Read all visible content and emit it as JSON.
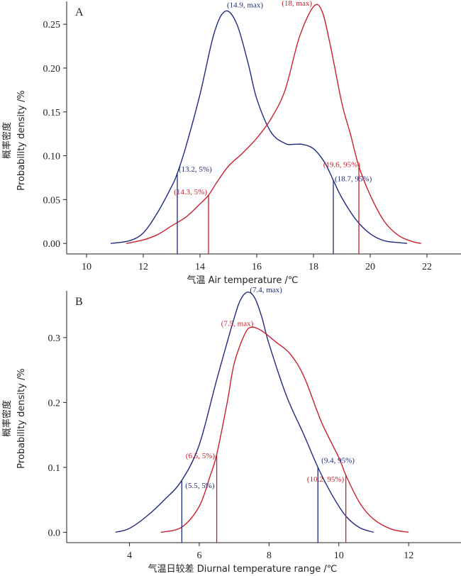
{
  "colors": {
    "blue": "#1f2a80",
    "red": "#c8202e"
  },
  "chart_data": [
    {
      "type": "line",
      "panel_label": "A",
      "xlabel": "气温 Air temperature /℃",
      "ylabel_cn": "概率密度",
      "ylabel_en": "Probability density /%",
      "xlim": [
        9.3,
        23.2
      ],
      "ylim": [
        -0.012,
        0.276
      ],
      "xticks": [
        10,
        12,
        14,
        16,
        18,
        20,
        22
      ],
      "xtick_labels": [
        "10",
        "12",
        "14",
        "16",
        "18",
        "20",
        "22"
      ],
      "yticks": [
        0,
        0.05,
        0.1,
        0.15,
        0.2,
        0.25
      ],
      "ytick_labels": [
        "0.00",
        "0.05",
        "0.10",
        "0.15",
        "0.20",
        "0.25"
      ],
      "series": [
        {
          "color": "blue",
          "x": [
            10.85,
            11.5,
            12.0,
            12.5,
            13.0,
            13.2,
            13.5,
            14.0,
            14.5,
            14.9,
            15.3,
            15.7,
            16.0,
            16.5,
            17.0,
            17.3,
            17.6,
            18.0,
            18.4,
            18.7,
            19.0,
            19.5,
            20.0,
            20.5,
            21.0,
            21.3
          ],
          "y": [
            0.0,
            0.003,
            0.012,
            0.035,
            0.065,
            0.08,
            0.11,
            0.17,
            0.24,
            0.265,
            0.25,
            0.205,
            0.165,
            0.127,
            0.114,
            0.113,
            0.113,
            0.108,
            0.092,
            0.072,
            0.052,
            0.027,
            0.011,
            0.003,
            0.001,
            0.0
          ]
        },
        {
          "color": "red",
          "x": [
            11.4,
            12.0,
            12.5,
            13.0,
            13.5,
            14.0,
            14.3,
            14.6,
            15.0,
            15.5,
            16.0,
            16.5,
            17.0,
            17.5,
            18.0,
            18.3,
            18.6,
            19.0,
            19.3,
            19.6,
            20.0,
            20.5,
            21.0,
            21.5,
            21.8
          ],
          "y": [
            0.0,
            0.004,
            0.01,
            0.02,
            0.03,
            0.045,
            0.055,
            0.07,
            0.088,
            0.103,
            0.12,
            0.142,
            0.175,
            0.235,
            0.27,
            0.265,
            0.225,
            0.16,
            0.125,
            0.088,
            0.055,
            0.025,
            0.009,
            0.002,
            0.0
          ]
        }
      ],
      "markers": [
        {
          "x": 13.2,
          "y": 0.08,
          "color": "blue"
        },
        {
          "x": 18.7,
          "y": 0.072,
          "color": "blue"
        },
        {
          "x": 14.3,
          "y": 0.055,
          "color": "red"
        },
        {
          "x": 19.6,
          "y": 0.088,
          "color": "red"
        }
      ],
      "annotations": [
        {
          "text": "(14.9, max)",
          "x": 14.95,
          "y": 0.269,
          "anchor": "start",
          "color": "blue"
        },
        {
          "text": "(18, max)",
          "x": 17.95,
          "y": 0.271,
          "anchor": "end",
          "color": "red"
        },
        {
          "text": "(13.2, 5%)",
          "x": 13.25,
          "y": 0.082,
          "anchor": "start",
          "color": "blue"
        },
        {
          "text": "(14.3, 5%)",
          "x": 14.25,
          "y": 0.056,
          "anchor": "end",
          "color": "red"
        },
        {
          "text": "(19.6, 95%)",
          "x": 19.65,
          "y": 0.087,
          "anchor": "end",
          "color": "red"
        },
        {
          "text": "(18.7, 95%)",
          "x": 18.75,
          "y": 0.071,
          "anchor": "start",
          "color": "blue"
        }
      ]
    },
    {
      "type": "line",
      "panel_label": "B",
      "xlabel": "气温日较差 Diurnal temperature range /℃",
      "ylabel_cn": "概率密度",
      "ylabel_en": "Probability density /%",
      "xlim": [
        2.2,
        13.5
      ],
      "ylim": [
        -0.016,
        0.372
      ],
      "xticks": [
        4,
        6,
        8,
        10,
        12
      ],
      "xtick_labels": [
        "4",
        "6",
        "8",
        "10",
        "12"
      ],
      "yticks": [
        0,
        0.1,
        0.2,
        0.3
      ],
      "ytick_labels": [
        "0.0",
        "0.1",
        "0.2",
        "0.3"
      ],
      "series": [
        {
          "color": "blue",
          "x": [
            3.6,
            4.0,
            4.5,
            5.0,
            5.5,
            6.0,
            6.5,
            7.0,
            7.2,
            7.4,
            7.6,
            7.8,
            8.0,
            8.5,
            9.0,
            9.4,
            9.8,
            10.2,
            10.6,
            11.0
          ],
          "y": [
            0.0,
            0.006,
            0.025,
            0.05,
            0.08,
            0.135,
            0.235,
            0.33,
            0.36,
            0.37,
            0.36,
            0.33,
            0.29,
            0.21,
            0.15,
            0.1,
            0.058,
            0.025,
            0.007,
            0.0
          ]
        },
        {
          "color": "red",
          "x": [
            4.9,
            5.5,
            6.0,
            6.3,
            6.5,
            6.8,
            7.0,
            7.3,
            7.5,
            7.8,
            8.2,
            8.6,
            9.0,
            9.5,
            10.0,
            10.2,
            10.6,
            11.0,
            11.5,
            12.0
          ],
          "y": [
            0.0,
            0.008,
            0.04,
            0.085,
            0.12,
            0.2,
            0.26,
            0.305,
            0.316,
            0.31,
            0.293,
            0.275,
            0.24,
            0.17,
            0.115,
            0.088,
            0.045,
            0.02,
            0.005,
            0.0
          ]
        }
      ],
      "markers": [
        {
          "x": 5.5,
          "y": 0.08,
          "color": "blue"
        },
        {
          "x": 9.4,
          "y": 0.1,
          "color": "blue"
        },
        {
          "x": 6.5,
          "y": 0.12,
          "color": "red"
        },
        {
          "x": 10.2,
          "y": 0.088,
          "color": "red"
        }
      ],
      "annotations": [
        {
          "text": "(7.4, max)",
          "x": 7.45,
          "y": 0.37,
          "anchor": "start",
          "color": "blue"
        },
        {
          "text": "(7.5, max)",
          "x": 7.55,
          "y": 0.318,
          "anchor": "end",
          "color": "red"
        },
        {
          "text": "(6.5, 5%)",
          "x": 6.45,
          "y": 0.114,
          "anchor": "end",
          "color": "red"
        },
        {
          "text": "(5.5, 5%)",
          "x": 5.6,
          "y": 0.068,
          "anchor": "start",
          "color": "blue"
        },
        {
          "text": "(9.4, 95%)",
          "x": 9.5,
          "y": 0.107,
          "anchor": "start",
          "color": "blue"
        },
        {
          "text": "(10.2, 95%)",
          "x": 10.15,
          "y": 0.078,
          "anchor": "end",
          "color": "red"
        }
      ]
    }
  ]
}
